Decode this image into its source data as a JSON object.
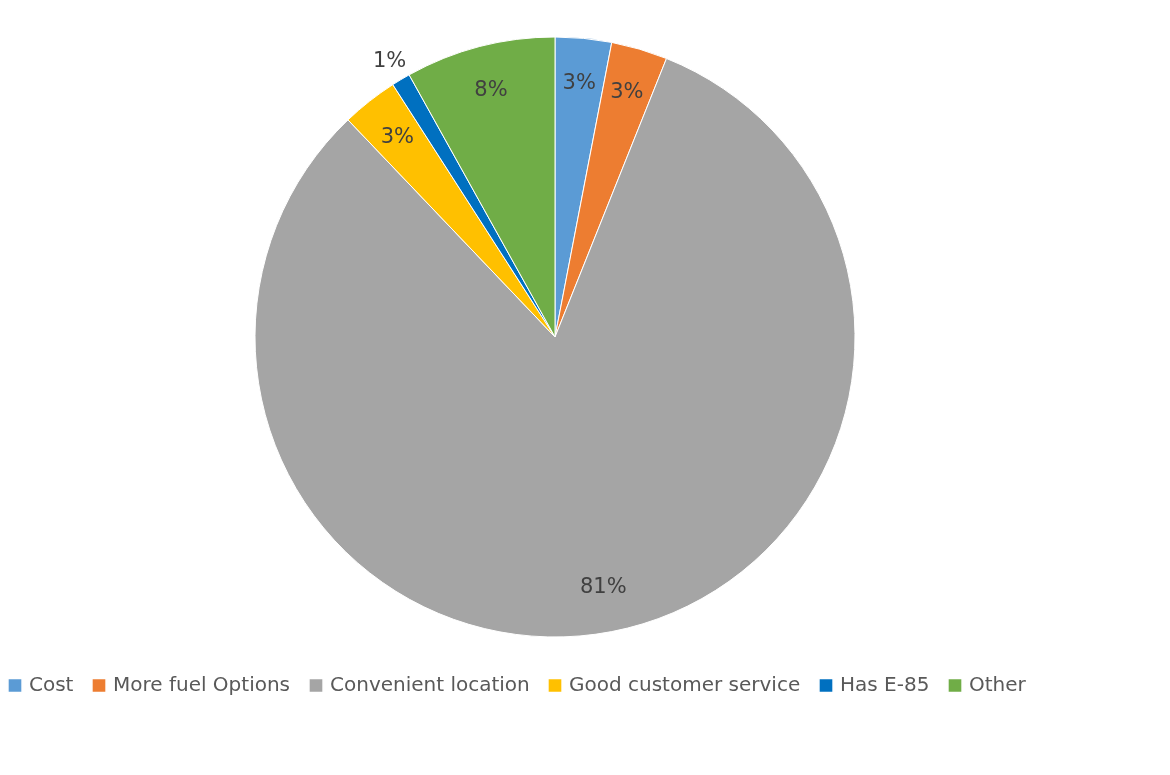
{
  "chart_data": {
    "type": "pie",
    "categories": [
      "Cost",
      "More fuel Options",
      "Convenient location",
      "Good customer service",
      "Has E-85",
      "Other"
    ],
    "values": [
      3,
      3,
      81,
      3,
      1,
      8
    ],
    "colors": [
      "#5b9bd5",
      "#ed7d31",
      "#a5a5a5",
      "#ffc000",
      "#0070c0",
      "#70ad47"
    ],
    "value_labels": [
      "3%",
      "3%",
      "81%",
      "3%",
      "1%",
      "8%"
    ],
    "legend": "bottom"
  }
}
